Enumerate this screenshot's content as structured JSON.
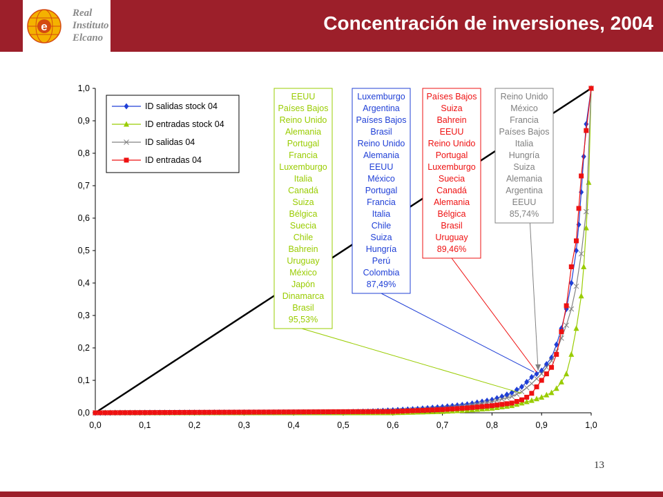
{
  "header": {
    "title": "Concentración de inversiones, 2004",
    "logo_lines": [
      "Real",
      "Instituto",
      "Elcano"
    ]
  },
  "colors": {
    "header_bg": "#9c1f2a",
    "salidas_stock": "#1f3fd6",
    "entradas_stock": "#99cc00",
    "salidas": "#808080",
    "entradas": "#ee1111",
    "diagonal": "#000000"
  },
  "page_number": "13",
  "chart_data": {
    "type": "line",
    "xlim": [
      0,
      1
    ],
    "ylim": [
      0,
      1
    ],
    "x_ticks": [
      "0,0",
      "0,1",
      "0,2",
      "0,3",
      "0,4",
      "0,5",
      "0,6",
      "0,7",
      "0,8",
      "0,9",
      "1,0"
    ],
    "y_ticks": [
      "0,0",
      "0,1",
      "0,2",
      "0,3",
      "0,4",
      "0,5",
      "0,6",
      "0,7",
      "0,8",
      "0,9",
      "1,0"
    ],
    "grid": false,
    "legend_position": "top-left",
    "diagonal": [
      [
        0,
        0
      ],
      [
        1,
        1
      ]
    ],
    "series": [
      {
        "name": "ID salidas stock 04",
        "color": "#1f3fd6",
        "marker": "diamond",
        "points": [
          [
            0.0,
            0.0
          ],
          [
            0.5,
            0.002
          ],
          [
            0.55,
            0.004
          ],
          [
            0.6,
            0.008
          ],
          [
            0.65,
            0.012
          ],
          [
            0.7,
            0.018
          ],
          [
            0.75,
            0.026
          ],
          [
            0.8,
            0.04
          ],
          [
            0.82,
            0.05
          ],
          [
            0.84,
            0.062
          ],
          [
            0.86,
            0.08
          ],
          [
            0.88,
            0.11
          ],
          [
            0.9,
            0.13
          ],
          [
            0.91,
            0.15
          ],
          [
            0.92,
            0.17
          ],
          [
            0.93,
            0.21
          ],
          [
            0.94,
            0.26
          ],
          [
            0.95,
            0.32
          ],
          [
            0.96,
            0.4
          ],
          [
            0.97,
            0.5
          ],
          [
            0.975,
            0.58
          ],
          [
            0.98,
            0.68
          ],
          [
            0.985,
            0.79
          ],
          [
            0.99,
            0.89
          ],
          [
            1.0,
            1.0
          ]
        ]
      },
      {
        "name": "ID entradas stock 04",
        "color": "#99cc00",
        "marker": "triangle",
        "points": [
          [
            0.0,
            0.0
          ],
          [
            0.6,
            0.0
          ],
          [
            0.7,
            0.004
          ],
          [
            0.75,
            0.008
          ],
          [
            0.8,
            0.014
          ],
          [
            0.84,
            0.022
          ],
          [
            0.86,
            0.03
          ],
          [
            0.88,
            0.038
          ],
          [
            0.9,
            0.048
          ],
          [
            0.92,
            0.062
          ],
          [
            0.93,
            0.075
          ],
          [
            0.94,
            0.095
          ],
          [
            0.95,
            0.12
          ],
          [
            0.96,
            0.18
          ],
          [
            0.97,
            0.26
          ],
          [
            0.98,
            0.36
          ],
          [
            0.985,
            0.45
          ],
          [
            0.99,
            0.57
          ],
          [
            0.995,
            0.71
          ],
          [
            1.0,
            1.0
          ]
        ]
      },
      {
        "name": "ID salidas 04",
        "color": "#808080",
        "marker": "x",
        "points": [
          [
            0.0,
            0.0
          ],
          [
            0.5,
            0.002
          ],
          [
            0.6,
            0.006
          ],
          [
            0.7,
            0.014
          ],
          [
            0.75,
            0.022
          ],
          [
            0.8,
            0.034
          ],
          [
            0.84,
            0.05
          ],
          [
            0.86,
            0.065
          ],
          [
            0.88,
            0.09
          ],
          [
            0.9,
            0.12
          ],
          [
            0.91,
            0.14
          ],
          [
            0.92,
            0.16
          ],
          [
            0.93,
            0.19
          ],
          [
            0.94,
            0.23
          ],
          [
            0.95,
            0.27
          ],
          [
            0.96,
            0.32
          ],
          [
            0.97,
            0.39
          ],
          [
            0.98,
            0.49
          ],
          [
            0.99,
            0.62
          ],
          [
            1.0,
            1.0
          ]
        ]
      },
      {
        "name": "ID entradas 04",
        "color": "#ee1111",
        "marker": "square",
        "points": [
          [
            0.0,
            0.0
          ],
          [
            0.6,
            0.004
          ],
          [
            0.7,
            0.01
          ],
          [
            0.75,
            0.015
          ],
          [
            0.8,
            0.022
          ],
          [
            0.84,
            0.03
          ],
          [
            0.86,
            0.04
          ],
          [
            0.87,
            0.048
          ],
          [
            0.88,
            0.06
          ],
          [
            0.89,
            0.08
          ],
          [
            0.9,
            0.1
          ],
          [
            0.91,
            0.12
          ],
          [
            0.92,
            0.14
          ],
          [
            0.93,
            0.18
          ],
          [
            0.94,
            0.25
          ],
          [
            0.95,
            0.33
          ],
          [
            0.96,
            0.45
          ],
          [
            0.97,
            0.53
          ],
          [
            0.975,
            0.63
          ],
          [
            0.98,
            0.73
          ],
          [
            0.99,
            0.87
          ],
          [
            1.0,
            1.0
          ]
        ]
      }
    ],
    "annotations": [
      {
        "color": "#99cc00",
        "countries": [
          "EEUU",
          "Países Bajos",
          "Reino Unido",
          "Alemania",
          "Portugal",
          "Francia",
          "Luxemburgo",
          "Italia",
          "Canadá",
          "Suiza",
          "Bélgica",
          "Suecia",
          "Chile",
          "Bahrein",
          "Uruguay",
          "México",
          "Japón",
          "Dinamarca",
          "Brasil"
        ],
        "value": "95,53%",
        "target": [
          0.86,
          0.06
        ]
      },
      {
        "color": "#1f3fd6",
        "countries": [
          "Luxemburgo",
          "Argentina",
          "Países Bajos",
          "Brasil",
          "Reino Unido",
          "Alemania",
          "EEUU",
          "México",
          "Portugal",
          "Francia",
          "Italia",
          "Chile",
          "Suiza",
          "Hungría",
          "Perú",
          "Colombia"
        ],
        "value": "87,49%",
        "target": [
          0.885,
          0.125
        ]
      },
      {
        "color": "#ee1111",
        "countries": [
          "Países Bajos",
          "Suiza",
          "Bahrein",
          "EEUU",
          "Reino Unido",
          "Portugal",
          "Luxemburgo",
          "Suecia",
          "Canadá",
          "Alemania",
          "Bélgica",
          "Brasil",
          "Uruguay"
        ],
        "value": "89,46%",
        "target": [
          0.89,
          0.125
        ]
      },
      {
        "color": "#808080",
        "countries": [
          "Reino Unido",
          "México",
          "Francia",
          "Países Bajos",
          "Italia",
          "Hungría",
          "Suiza",
          "Alemania",
          "Argentina",
          "EEUU"
        ],
        "value": "85,74%",
        "target": [
          0.893,
          0.13
        ]
      }
    ]
  }
}
